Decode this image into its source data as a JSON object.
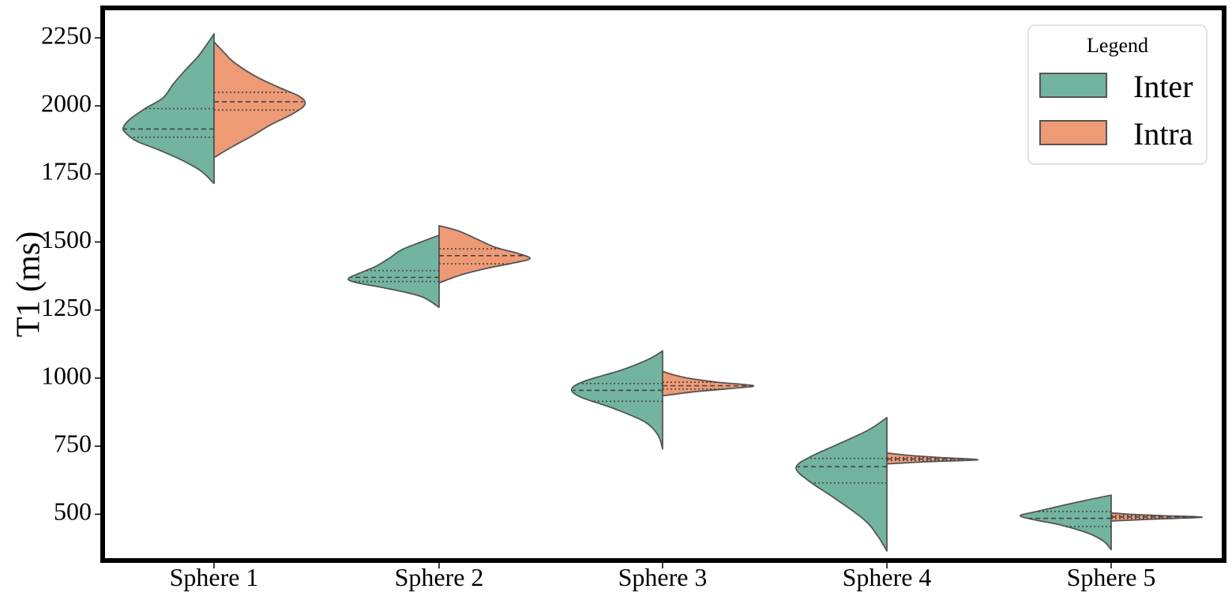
{
  "chart_data": {
    "type": "violin",
    "subtype": "split",
    "title": "",
    "xlabel": "",
    "ylabel": "T1 (ms)",
    "ylim": [
      330,
      2360
    ],
    "yticks": [
      500,
      750,
      1000,
      1250,
      1500,
      1750,
      2000,
      2250
    ],
    "categories": [
      "Sphere 1",
      "Sphere 2",
      "Sphere 3",
      "Sphere 4",
      "Sphere 5"
    ],
    "grid": false,
    "legend": {
      "title": "Legend",
      "placement": "top-right"
    },
    "series": [
      {
        "name": "Inter",
        "color": "#72b4a0",
        "side": "left",
        "violins": [
          {
            "min": 1715,
            "max": 2265,
            "q1": 1885,
            "median": 1915,
            "q3": 1990,
            "density": [
              [
                1715,
                0.0
              ],
              [
                1760,
                0.14
              ],
              [
                1800,
                0.35
              ],
              [
                1840,
                0.62
              ],
              [
                1870,
                0.85
              ],
              [
                1900,
                0.97
              ],
              [
                1920,
                1.0
              ],
              [
                1950,
                0.93
              ],
              [
                1990,
                0.76
              ],
              [
                2030,
                0.56
              ],
              [
                2080,
                0.45
              ],
              [
                2130,
                0.32
              ],
              [
                2180,
                0.18
              ],
              [
                2230,
                0.07
              ],
              [
                2265,
                0.0
              ]
            ]
          },
          {
            "min": 1260,
            "max": 1525,
            "q1": 1355,
            "median": 1370,
            "q3": 1395,
            "density": [
              [
                1260,
                0.0
              ],
              [
                1300,
                0.2
              ],
              [
                1330,
                0.58
              ],
              [
                1350,
                0.9
              ],
              [
                1365,
                1.0
              ],
              [
                1385,
                0.88
              ],
              [
                1410,
                0.7
              ],
              [
                1440,
                0.55
              ],
              [
                1470,
                0.42
              ],
              [
                1500,
                0.2
              ],
              [
                1525,
                0.0
              ]
            ]
          },
          {
            "min": 740,
            "max": 1100,
            "q1": 915,
            "median": 955,
            "q3": 980,
            "density": [
              [
                740,
                0.0
              ],
              [
                790,
                0.05
              ],
              [
                840,
                0.2
              ],
              [
                890,
                0.55
              ],
              [
                930,
                0.9
              ],
              [
                960,
                1.0
              ],
              [
                990,
                0.85
              ],
              [
                1030,
                0.45
              ],
              [
                1070,
                0.15
              ],
              [
                1100,
                0.0
              ]
            ]
          },
          {
            "min": 365,
            "max": 855,
            "q1": 615,
            "median": 675,
            "q3": 705,
            "density": [
              [
                365,
                0.0
              ],
              [
                420,
                0.1
              ],
              [
                480,
                0.25
              ],
              [
                560,
                0.58
              ],
              [
                620,
                0.85
              ],
              [
                670,
                1.0
              ],
              [
                710,
                0.85
              ],
              [
                760,
                0.52
              ],
              [
                810,
                0.2
              ],
              [
                855,
                0.0
              ]
            ]
          },
          {
            "min": 370,
            "max": 570,
            "q1": 455,
            "median": 485,
            "q3": 510,
            "density": [
              [
                370,
                0.0
              ],
              [
                400,
                0.08
              ],
              [
                430,
                0.25
              ],
              [
                460,
                0.55
              ],
              [
                480,
                0.85
              ],
              [
                495,
                1.0
              ],
              [
                510,
                0.82
              ],
              [
                535,
                0.5
              ],
              [
                560,
                0.15
              ],
              [
                570,
                0.0
              ]
            ]
          }
        ]
      },
      {
        "name": "Intra",
        "color": "#ee9a75",
        "side": "right",
        "violins": [
          {
            "min": 1810,
            "max": 2235,
            "q1": 1985,
            "median": 2015,
            "q3": 2050,
            "density": [
              [
                1810,
                0.0
              ],
              [
                1850,
                0.2
              ],
              [
                1890,
                0.42
              ],
              [
                1930,
                0.62
              ],
              [
                1970,
                0.86
              ],
              [
                2005,
                1.0
              ],
              [
                2035,
                0.94
              ],
              [
                2070,
                0.7
              ],
              [
                2110,
                0.45
              ],
              [
                2160,
                0.22
              ],
              [
                2200,
                0.1
              ],
              [
                2235,
                0.0
              ]
            ]
          },
          {
            "min": 1350,
            "max": 1560,
            "q1": 1420,
            "median": 1450,
            "q3": 1475,
            "density": [
              [
                1350,
                0.0
              ],
              [
                1380,
                0.25
              ],
              [
                1405,
                0.55
              ],
              [
                1425,
                0.85
              ],
              [
                1440,
                1.0
              ],
              [
                1460,
                0.85
              ],
              [
                1480,
                0.62
              ],
              [
                1510,
                0.42
              ],
              [
                1540,
                0.22
              ],
              [
                1560,
                0.0
              ]
            ]
          },
          {
            "min": 935,
            "max": 1025,
            "q1": 960,
            "median": 972,
            "q3": 985,
            "density": [
              [
                935,
                0.0
              ],
              [
                950,
                0.35
              ],
              [
                962,
                0.75
              ],
              [
                972,
                1.0
              ],
              [
                985,
                0.6
              ],
              [
                1000,
                0.28
              ],
              [
                1012,
                0.12
              ],
              [
                1025,
                0.0
              ]
            ]
          },
          {
            "min": 685,
            "max": 725,
            "q1": 698,
            "median": 703,
            "q3": 708,
            "density": [
              [
                685,
                0.0
              ],
              [
                693,
                0.45
              ],
              [
                700,
                1.0
              ],
              [
                708,
                0.6
              ],
              [
                716,
                0.25
              ],
              [
                725,
                0.0
              ]
            ]
          },
          {
            "min": 475,
            "max": 505,
            "q1": 485,
            "median": 490,
            "q3": 495,
            "density": [
              [
                475,
                0.0
              ],
              [
                482,
                0.45
              ],
              [
                489,
                1.0
              ],
              [
                495,
                0.55
              ],
              [
                500,
                0.2
              ],
              [
                505,
                0.0
              ]
            ]
          }
        ]
      }
    ]
  }
}
